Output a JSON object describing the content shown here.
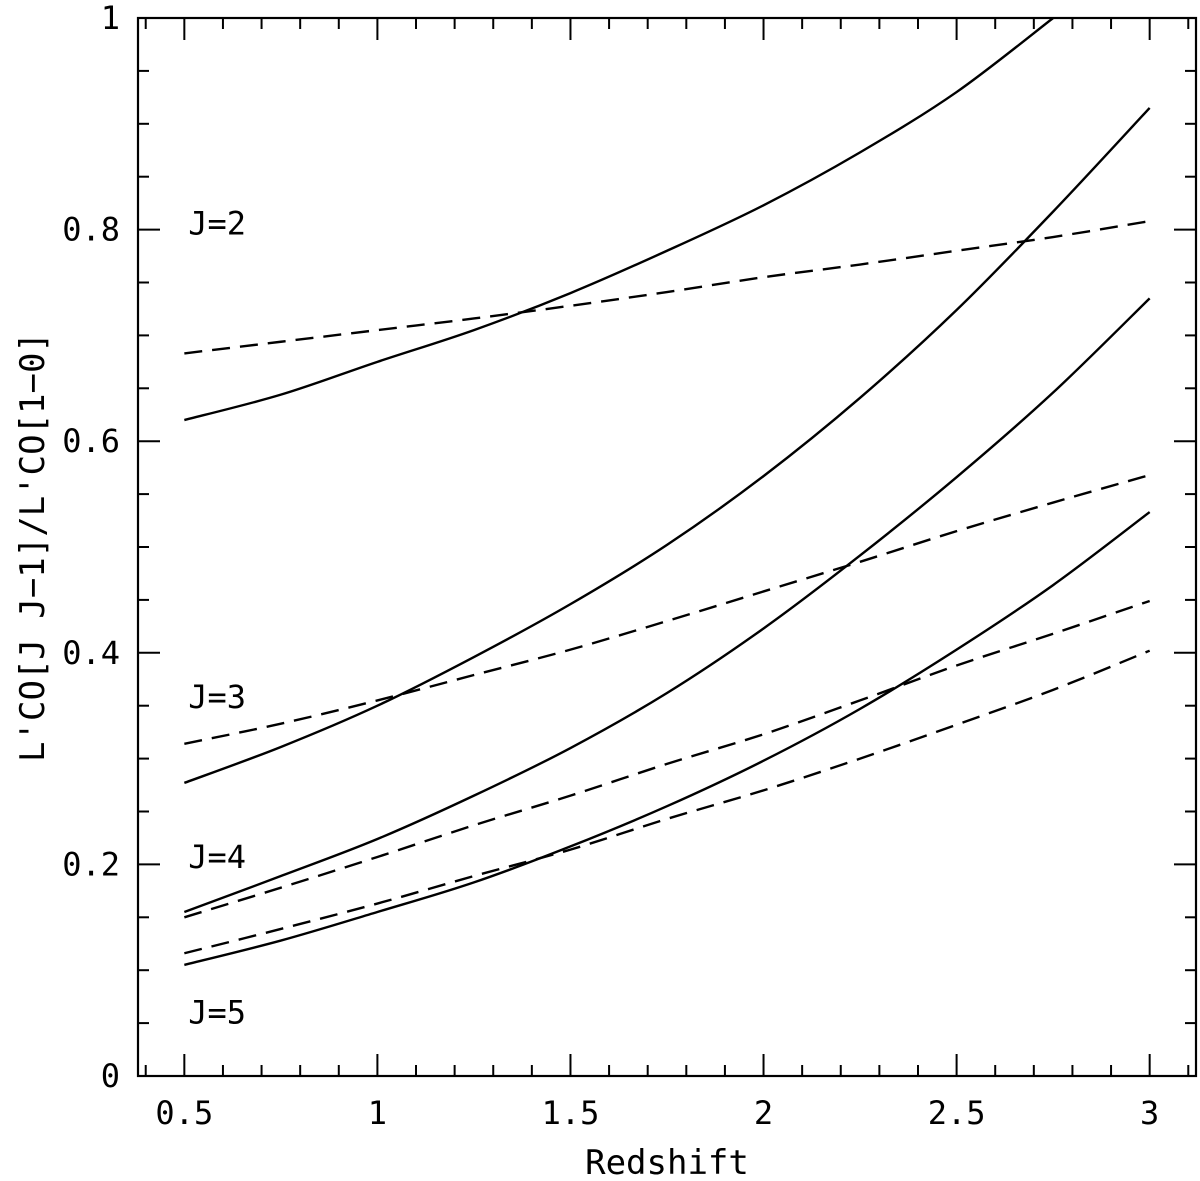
{
  "chart_data": {
    "type": "line",
    "title": "",
    "xlabel": "Redshift",
    "ylabel": "L'CO[J J−1]/L'CO[1−0]",
    "xlim": [
      0.38,
      3.12
    ],
    "ylim": [
      0,
      1
    ],
    "xticks": [
      0.5,
      1,
      1.5,
      2,
      2.5,
      3
    ],
    "xtick_labels": [
      "0.5",
      "1",
      "1.5",
      "2",
      "2.5",
      "3"
    ],
    "yticks": [
      0,
      0.2,
      0.4,
      0.6,
      0.8,
      1
    ],
    "ytick_labels": [
      "0",
      "0.2",
      "0.4",
      "0.6",
      "0.8",
      "1"
    ],
    "x_minor_step": 0.1,
    "y_minor_step": 0.05,
    "grid": false,
    "legend": "none",
    "annotations": [
      {
        "text": "J=2",
        "x": 0.51,
        "y": 0.806
      },
      {
        "text": "J=3",
        "x": 0.51,
        "y": 0.358
      },
      {
        "text": "J=4",
        "x": 0.51,
        "y": 0.207
      },
      {
        "text": "J=5",
        "x": 0.51,
        "y": 0.06
      }
    ],
    "x": [
      0.5,
      0.75,
      1.0,
      1.25,
      1.5,
      1.75,
      2.0,
      2.25,
      2.5,
      2.75,
      3.0
    ],
    "series": [
      {
        "style": "solid",
        "values": [
          0.62,
          0.644,
          0.675,
          0.705,
          0.74,
          0.78,
          0.823,
          0.873,
          0.93,
          1.0,
          null
        ]
      },
      {
        "style": "dashed",
        "values": [
          0.683,
          0.694,
          0.705,
          0.716,
          0.728,
          0.741,
          0.755,
          0.767,
          0.78,
          0.793,
          0.808
        ]
      },
      {
        "style": "solid",
        "values": [
          0.277,
          0.311,
          0.35,
          0.396,
          0.446,
          0.502,
          0.567,
          0.641,
          0.724,
          0.817,
          0.915
        ]
      },
      {
        "style": "dashed",
        "values": [
          0.314,
          0.333,
          0.355,
          0.379,
          0.403,
          0.43,
          0.458,
          0.486,
          0.515,
          0.542,
          0.568
        ]
      },
      {
        "style": "solid",
        "values": [
          0.155,
          0.189,
          0.224,
          0.265,
          0.31,
          0.362,
          0.423,
          0.492,
          0.566,
          0.646,
          0.735
        ]
      },
      {
        "style": "dashed",
        "values": [
          0.15,
          0.178,
          0.207,
          0.237,
          0.265,
          0.295,
          0.323,
          0.355,
          0.388,
          0.418,
          0.449
        ]
      },
      {
        "style": "solid",
        "values": [
          0.105,
          0.128,
          0.155,
          0.183,
          0.217,
          0.255,
          0.298,
          0.347,
          0.403,
          0.464,
          0.533
        ]
      },
      {
        "style": "dashed",
        "values": [
          0.116,
          0.139,
          0.163,
          0.189,
          0.214,
          0.243,
          0.27,
          0.3,
          0.332,
          0.365,
          0.402
        ]
      }
    ]
  }
}
